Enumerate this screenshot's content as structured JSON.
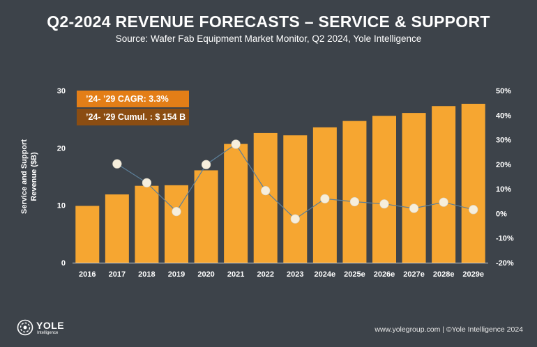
{
  "header": {
    "title": "Q2-2024 REVENUE FORECASTS – SERVICE & SUPPORT",
    "subtitle": "Source: Wafer Fab Equipment Market Monitor, Q2 2024, Yole Intelligence"
  },
  "annotations": {
    "cagr": "’24- ’29 CAGR: 3.3%",
    "cumul": "’24- ’29 Cumul. : $ 154 B"
  },
  "footer": {
    "logo_text": "YOLE",
    "logo_sub": "Intelligence",
    "credit": "www.yolegroup.com | ©Yole Intelligence 2024"
  },
  "colors": {
    "background": "#3d434a",
    "bar": "#f6a631",
    "growth_line": "#5c7f99",
    "growth_marker": "#f6eedc",
    "cagr_box": "#e37e17",
    "cumul_box": "#8b4d12"
  },
  "chart_data": {
    "type": "bar",
    "categories": [
      "2016",
      "2017",
      "2018",
      "2019",
      "2020",
      "2021",
      "2022",
      "2023",
      "2024e",
      "2025e",
      "2026e",
      "2027e",
      "2028e",
      "2029e"
    ],
    "series": [
      {
        "axis": "left",
        "type": "bar",
        "values": [
          9.9,
          11.9,
          13.4,
          13.5,
          16.1,
          20.7,
          22.6,
          22.2,
          23.6,
          24.7,
          25.6,
          26.1,
          27.3,
          27.7
        ]
      },
      {
        "axis": "right",
        "type": "line",
        "values": [
          null,
          20.2,
          12.5,
          0.8,
          19.9,
          28.2,
          9.3,
          -2.2,
          6.0,
          4.8,
          3.9,
          2.1,
          4.6,
          1.6
        ]
      }
    ],
    "ylabel": "Service and Support Revenue ($B)",
    "ylim": [
      0,
      30
    ],
    "yticks": [
      "0",
      "10",
      "20",
      "30"
    ],
    "y2lim": [
      -20,
      50
    ],
    "y2ticks": [
      "-20%",
      "-10%",
      "0%",
      "10%",
      "20%",
      "30%",
      "40%",
      "50%"
    ],
    "grid": false
  }
}
